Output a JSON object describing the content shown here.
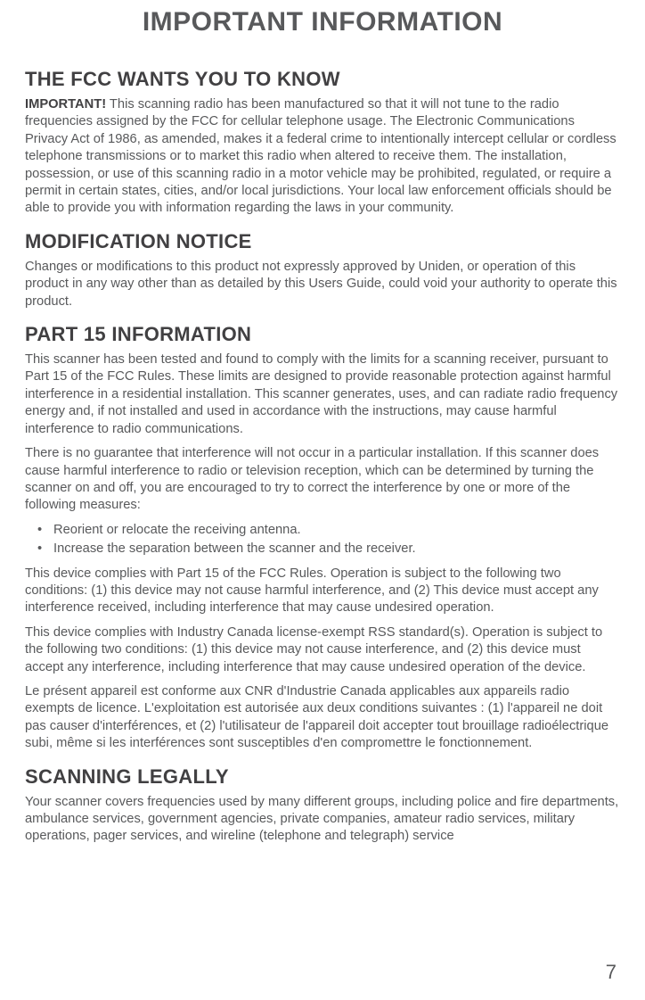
{
  "page": {
    "title": "IMPORTANT INFORMATION",
    "number": "7"
  },
  "sections": {
    "fcc": {
      "heading": "THE FCC WANTS YOU TO KNOW",
      "lead": "IMPORTANT!",
      "body": " This scanning radio has been manufactured so that it will not tune to the radio frequencies assigned by the FCC for cellular telephone usage. The Electronic Communications Privacy Act of 1986, as amended, makes it a federal crime to intentionally intercept cellular or cordless telephone transmissions or to market this radio when altered to receive them. The installation, possession, or use of this scanning radio in a motor vehicle may be prohibited, regulated, or require a permit in certain states, cities, and/or local jurisdictions. Your local law enforcement officials should be able to provide you with information regarding the laws in your community."
    },
    "modification": {
      "heading": "MODIFICATION NOTICE",
      "body": "Changes or modifications to this product not expressly approved by Uniden, or operation of this product in any way other than as detailed by this Users Guide, could void your authority to operate this product."
    },
    "part15": {
      "heading": "PART 15 INFORMATION",
      "p1": "This scanner has been tested and found to comply with the limits for a scanning receiver, pursuant to Part 15 of the FCC Rules. These limits are designed to provide reasonable protection against harmful interference in a residential installation. This scanner generates, uses, and can radiate radio frequency energy and, if not installed and used in accordance with the instructions, may cause harmful interference to radio communications.",
      "p2": "There is no guarantee that interference will not occur in a particular installation. If this scanner does cause harmful interference to radio or television reception, which can be determined by turning the scanner on and off, you are encouraged to try to correct the interference by one or more of the following measures:",
      "bullets": {
        "b1": "Reorient or relocate the receiving antenna.",
        "b2": "Increase the separation between the scanner and the receiver."
      },
      "p3": "This device complies with Part 15 of the FCC Rules. Operation is subject to the following two conditions: (1) this device may not cause harmful interference, and (2) This device must accept any interference received, including interference that may cause undesired operation.",
      "p4": "This device complies with Industry Canada license-exempt RSS standard(s). Operation is subject to the following two conditions: (1) this device may not cause interference, and (2) this device must accept any interference, including interference that may cause undesired operation of the device.",
      "p5": "Le présent appareil est conforme aux CNR d'Industrie Canada applicables aux appareils radio exempts de licence. L'exploitation est autorisée aux deux conditions suivantes : (1) l'appareil ne doit pas causer d'interférences, et (2) l'utilisateur de l'appareil doit accepter tout brouillage radioélectrique subi, même si les interférences sont susceptibles d'en compromettre le fonctionnement."
    },
    "scanning": {
      "heading": "SCANNING LEGALLY",
      "body": "Your scanner covers frequencies used by many different groups, including police and fire departments, ambulance services, government agencies, private companies, amateur radio services, military operations, pager services, and wireline (telephone and telegraph) service"
    }
  },
  "styling": {
    "page_bg": "#ffffff",
    "title_color": "#58595b",
    "heading_color": "#414042",
    "body_color": "#58595b",
    "title_fontsize": 30,
    "heading_fontsize": 22,
    "body_fontsize": 14.7,
    "pagenum_fontsize": 22,
    "line_height": 1.32,
    "font_family": "Arial, Helvetica, sans-serif"
  }
}
